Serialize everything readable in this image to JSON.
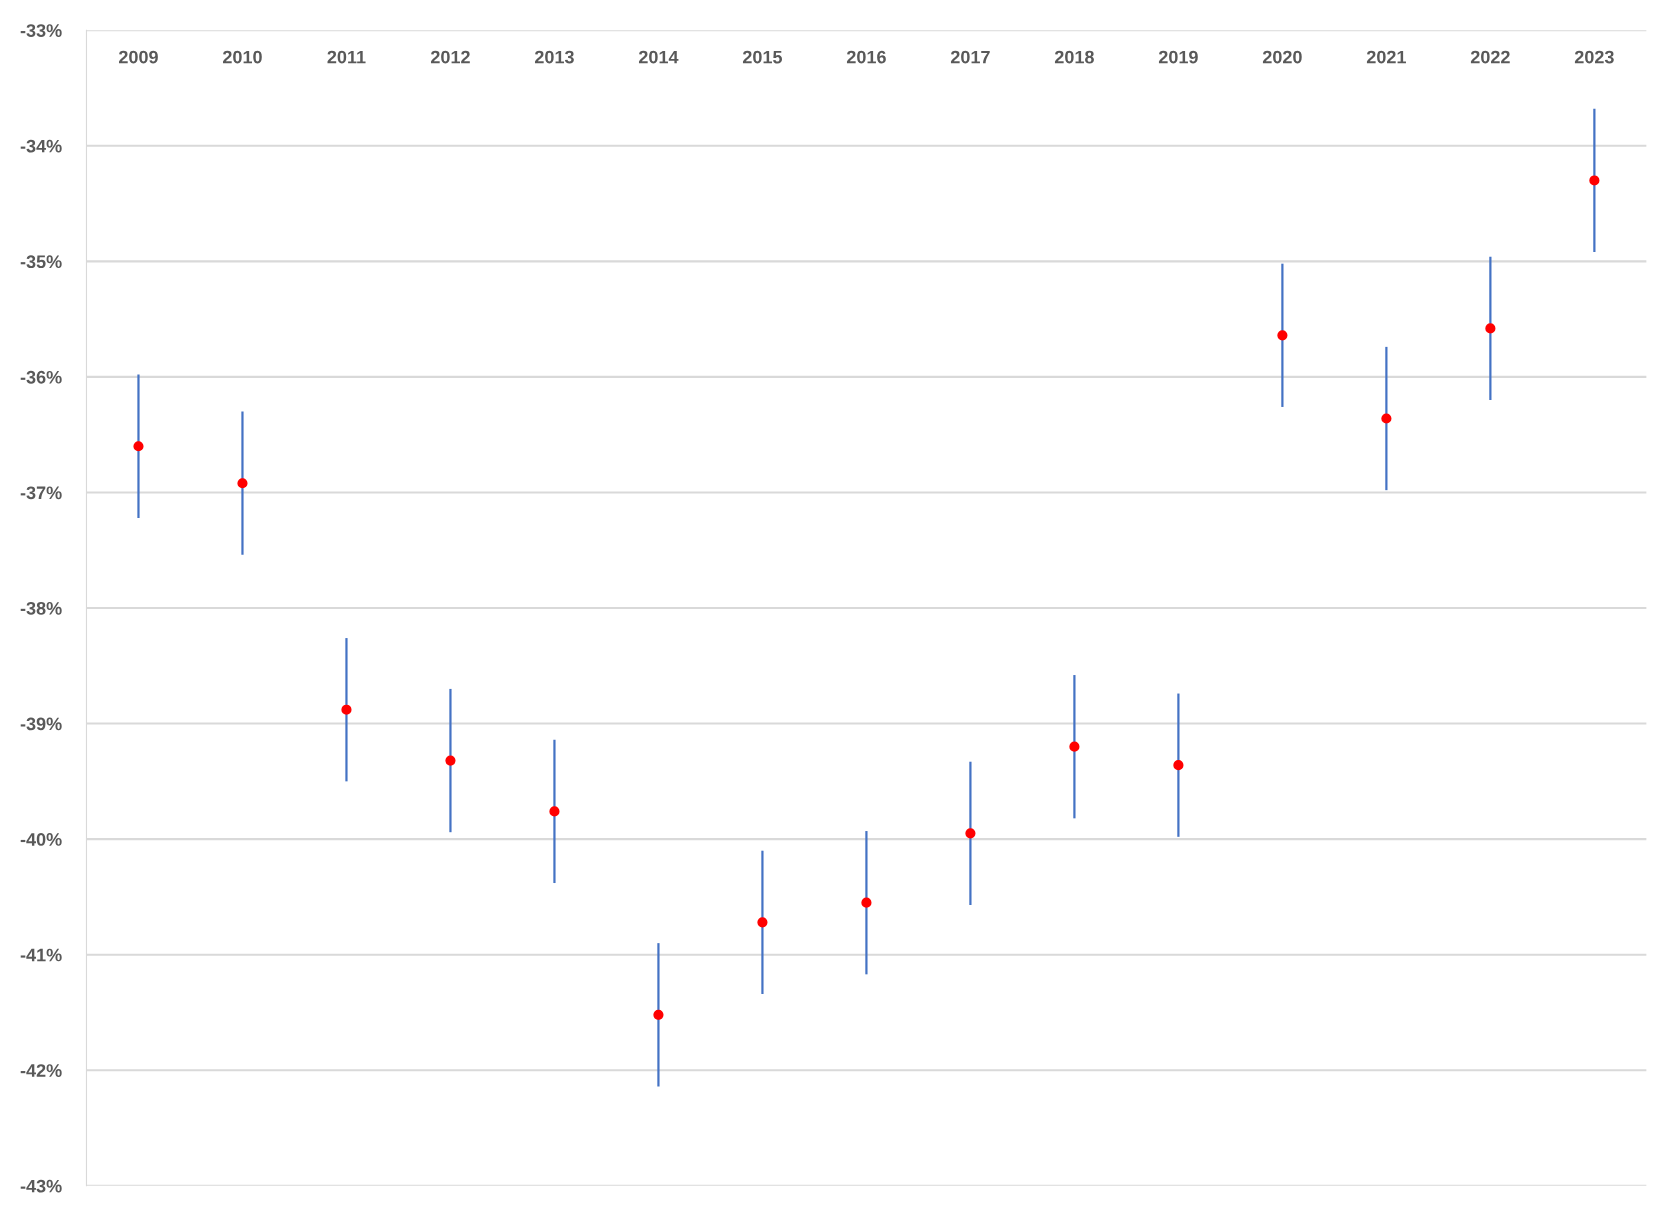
{
  "chart_data": {
    "type": "scatter",
    "categories": [
      "2009",
      "2010",
      "2011",
      "2012",
      "2013",
      "2014",
      "2015",
      "2016",
      "2017",
      "2018",
      "2019",
      "2020",
      "2021",
      "2022",
      "2023"
    ],
    "series": [
      {
        "color": "#ff0000",
        "values": [
          -36.6,
          -36.92,
          -38.88,
          -39.32,
          -39.76,
          -41.52,
          -40.72,
          -40.55,
          -39.95,
          -39.2,
          -39.36,
          -35.64,
          -36.36,
          -35.58,
          -34.3
        ],
        "errors": [
          0.62,
          0.62,
          0.62,
          0.62,
          0.62,
          0.62,
          0.62,
          0.62,
          0.62,
          0.62,
          0.62,
          0.62,
          0.62,
          0.62,
          0.62
        ]
      }
    ],
    "marker": "circle",
    "ylim": [
      -43,
      -33
    ],
    "yticks": [
      {
        "value": -43,
        "label": "-43%"
      },
      {
        "value": -42,
        "label": "-42%"
      },
      {
        "value": -41,
        "label": "-41%"
      },
      {
        "value": -40,
        "label": "-40%"
      },
      {
        "value": -39,
        "label": "-39%"
      },
      {
        "value": -38,
        "label": "-38%"
      },
      {
        "value": -37,
        "label": "-37%"
      },
      {
        "value": -36,
        "label": "-36%"
      },
      {
        "value": -35,
        "label": "-35%"
      },
      {
        "value": -34,
        "label": "-34%"
      },
      {
        "value": -33,
        "label": "-33%"
      }
    ],
    "grid": "y"
  }
}
